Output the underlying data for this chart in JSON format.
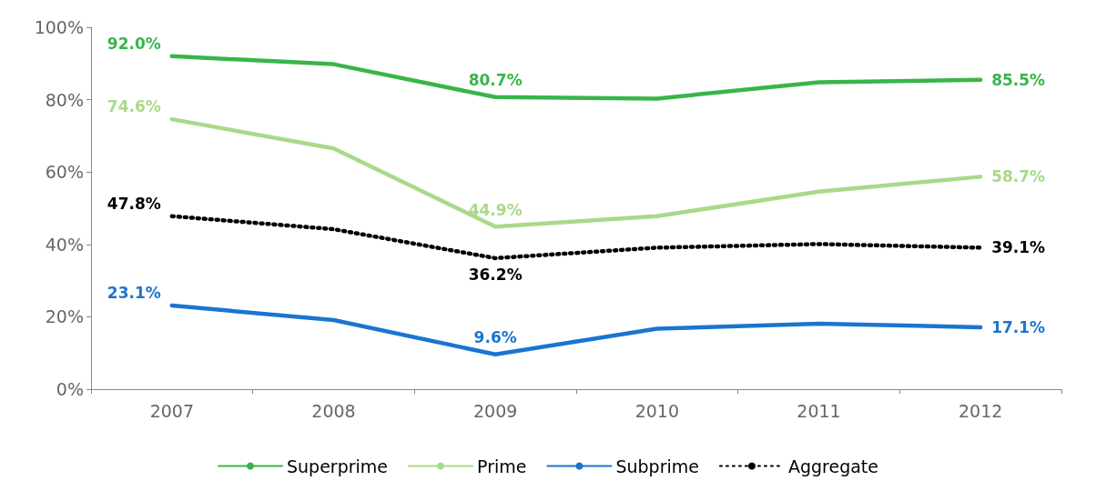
{
  "chart_data": {
    "type": "line",
    "categories": [
      "2007",
      "2008",
      "2009",
      "2010",
      "2011",
      "2012"
    ],
    "ylim": [
      0,
      100
    ],
    "yticks": [
      {
        "value": 0,
        "label": "0%"
      },
      {
        "value": 20,
        "label": "20%"
      },
      {
        "value": 40,
        "label": "40%"
      },
      {
        "value": 60,
        "label": "60%"
      },
      {
        "value": 80,
        "label": "80%"
      },
      {
        "value": 100,
        "label": "100%"
      }
    ],
    "grid": false,
    "legend": "bottom",
    "marker": "none",
    "series": [
      {
        "name": "Superprime",
        "color": "#38b54a",
        "line_style": "solid",
        "values": [
          92.0,
          89.8,
          80.7,
          80.3,
          84.8,
          85.5
        ],
        "value_labels": [
          "92.0%",
          null,
          "80.7%",
          null,
          null,
          "85.5%"
        ]
      },
      {
        "name": "Prime",
        "color": "#a9d98a",
        "line_style": "solid",
        "values": [
          74.6,
          66.5,
          44.9,
          47.8,
          54.6,
          58.7
        ],
        "value_labels": [
          "74.6%",
          null,
          "44.9%",
          null,
          null,
          "58.7%"
        ]
      },
      {
        "name": "Subprime",
        "color": "#1a75cf",
        "line_style": "solid",
        "values": [
          23.1,
          19.1,
          9.6,
          16.7,
          18.1,
          17.1
        ],
        "value_labels": [
          "23.1%",
          null,
          "9.6%",
          null,
          null,
          "17.1%"
        ]
      },
      {
        "name": "Aggregate",
        "color": "#000000",
        "line_style": "dotted",
        "values": [
          47.8,
          44.2,
          36.2,
          39.1,
          40.1,
          39.1
        ],
        "value_labels": [
          "47.8%",
          null,
          "36.2%",
          null,
          null,
          "39.1%"
        ]
      }
    ]
  }
}
